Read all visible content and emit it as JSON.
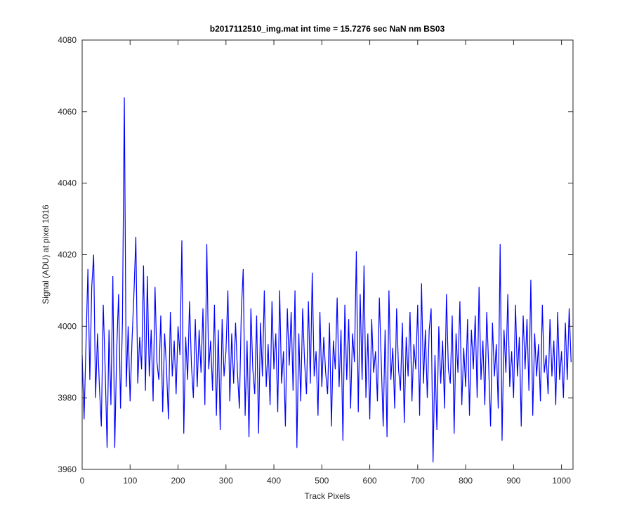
{
  "chart_data": {
    "type": "line",
    "title": "b2017112510_img.mat int time = 15.7276 sec  NaN nm BS03",
    "xlabel": "Track Pixels",
    "ylabel": "Signal (ADU) at pixel 1016",
    "xlim": [
      0,
      1024
    ],
    "ylim": [
      3960,
      4080
    ],
    "xticks": [
      0,
      100,
      200,
      300,
      400,
      500,
      600,
      700,
      800,
      900,
      1000
    ],
    "yticks": [
      3960,
      3980,
      4000,
      4020,
      4040,
      4060,
      4080
    ],
    "grid": false,
    "x": [
      0,
      4,
      8,
      12,
      16,
      20,
      24,
      28,
      32,
      36,
      40,
      44,
      48,
      52,
      56,
      60,
      64,
      68,
      72,
      76,
      80,
      84,
      88,
      92,
      96,
      100,
      104,
      108,
      112,
      116,
      120,
      124,
      128,
      132,
      136,
      140,
      144,
      148,
      152,
      156,
      160,
      164,
      168,
      172,
      176,
      180,
      184,
      188,
      192,
      196,
      200,
      204,
      208,
      212,
      216,
      220,
      224,
      228,
      232,
      236,
      240,
      244,
      248,
      252,
      256,
      260,
      264,
      268,
      272,
      276,
      280,
      284,
      288,
      292,
      296,
      300,
      304,
      308,
      312,
      316,
      320,
      324,
      328,
      332,
      336,
      340,
      344,
      348,
      352,
      356,
      360,
      364,
      368,
      372,
      376,
      380,
      384,
      388,
      392,
      396,
      400,
      404,
      408,
      412,
      416,
      420,
      424,
      428,
      432,
      436,
      440,
      444,
      448,
      452,
      456,
      460,
      464,
      468,
      472,
      476,
      480,
      484,
      488,
      492,
      496,
      500,
      504,
      508,
      512,
      516,
      520,
      524,
      528,
      532,
      536,
      540,
      544,
      548,
      552,
      556,
      560,
      564,
      568,
      572,
      576,
      580,
      584,
      588,
      592,
      596,
      600,
      604,
      608,
      612,
      616,
      620,
      624,
      628,
      632,
      636,
      640,
      644,
      648,
      652,
      656,
      660,
      664,
      668,
      672,
      676,
      680,
      684,
      688,
      692,
      696,
      700,
      704,
      708,
      712,
      716,
      720,
      724,
      728,
      732,
      736,
      740,
      744,
      748,
      752,
      756,
      760,
      764,
      768,
      772,
      776,
      780,
      784,
      788,
      792,
      796,
      800,
      804,
      808,
      812,
      816,
      820,
      824,
      828,
      832,
      836,
      840,
      844,
      848,
      852,
      856,
      860,
      864,
      868,
      872,
      876,
      880,
      884,
      888,
      892,
      896,
      900,
      904,
      908,
      912,
      916,
      920,
      924,
      928,
      932,
      936,
      940,
      944,
      948,
      952,
      956,
      960,
      964,
      968,
      972,
      976,
      980,
      984,
      988,
      992,
      996,
      1000,
      1004,
      1008,
      1012,
      1016,
      1020
    ],
    "series": [
      {
        "color": "#0000ff",
        "values": [
          3992,
          3974,
          3995,
          4016,
          3985,
          4011,
          4020,
          3980,
          3998,
          3983,
          3972,
          4006,
          3988,
          3966,
          3999,
          3978,
          4014,
          3966,
          3993,
          4009,
          3977,
          4001,
          4064,
          3983,
          4000,
          3979,
          3996,
          4009,
          4025,
          3984,
          3997,
          3988,
          4017,
          3982,
          4014,
          3986,
          3999,
          3979,
          4011,
          3990,
          3985,
          4003,
          3976,
          3998,
          3988,
          3974,
          4004,
          3986,
          3996,
          3981,
          4000,
          3992,
          4024,
          3970,
          3997,
          3985,
          4007,
          3989,
          3980,
          4002,
          3983,
          3999,
          3987,
          4005,
          3978,
          4023,
          3988,
          3996,
          3982,
          4006,
          3975,
          3999,
          3971,
          4002,
          3986,
          3993,
          4010,
          3979,
          3998,
          3984,
          4001,
          3987,
          3977,
          4004,
          4016,
          3975,
          3996,
          3969,
          4005,
          3988,
          3981,
          4003,
          3970,
          4001,
          3986,
          4010,
          3983,
          3995,
          3978,
          4007,
          3988,
          3998,
          3976,
          4010,
          3984,
          3993,
          3972,
          4005,
          3989,
          4004,
          3982,
          4010,
          3966,
          3998,
          3979,
          4005,
          3990,
          3981,
          4007,
          3984,
          4015,
          3986,
          3993,
          3975,
          4004,
          3983,
          3997,
          3987,
          3981,
          4001,
          3972,
          3996,
          3988,
          4008,
          3983,
          3999,
          3968,
          4006,
          3985,
          4002,
          3977,
          3998,
          3990,
          4021,
          3976,
          4009,
          3985,
          4017,
          3980,
          3998,
          3974,
          4002,
          3987,
          3993,
          3979,
          4008,
          3990,
          3972,
          3999,
          3969,
          4010,
          3985,
          3994,
          3977,
          4005,
          3988,
          3982,
          4001,
          3973,
          3997,
          3986,
          4004,
          3979,
          3995,
          3988,
          4006,
          3975,
          4012,
          3984,
          3999,
          3980,
          3999,
          4005,
          3962,
          3992,
          3971,
          4000,
          3984,
          3996,
          3977,
          4009,
          3988,
          3984,
          4003,
          3970,
          3998,
          3987,
          4007,
          3978,
          3994,
          3983,
          4002,
          3975,
          3999,
          3988,
          4003,
          3980,
          4011,
          3985,
          3996,
          3978,
          4004,
          3989,
          3972,
          4001,
          3986,
          3995,
          3977,
          4023,
          3968,
          3999,
          3987,
          4009,
          3983,
          3993,
          3980,
          4006,
          3986,
          3997,
          3972,
          4003,
          3988,
          4002,
          3982,
          4013,
          3975,
          3998,
          3986,
          3995,
          3979,
          4006,
          3987,
          3992,
          3981,
          4002,
          3986,
          3996,
          3978,
          4004,
          3985,
          3993,
          3980,
          4001,
          3985,
          4005,
          3990
        ]
      }
    ]
  }
}
